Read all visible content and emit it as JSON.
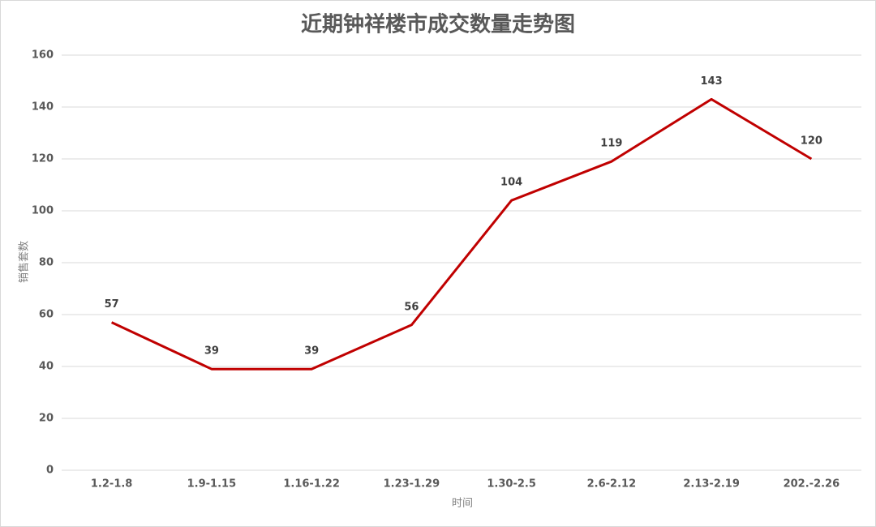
{
  "chart_data": {
    "type": "line",
    "title": "近期钟祥楼市成交数量走势图",
    "xlabel": "时间",
    "ylabel": "销售套数",
    "categories": [
      "1.2-1.8",
      "1.9-1.15",
      "1.16-1.22",
      "1.23-1.29",
      "1.30-2.5",
      "2.6-2.12",
      "2.13-2.19",
      "202.-2.26"
    ],
    "series": [
      {
        "name": "销售套数",
        "color": "#c00000",
        "values": [
          57,
          39,
          39,
          56,
          104,
          119,
          143,
          120
        ]
      }
    ],
    "ylim": [
      0,
      160
    ],
    "yticks": [
      0,
      20,
      40,
      60,
      80,
      100,
      120,
      140,
      160
    ],
    "grid": true
  }
}
